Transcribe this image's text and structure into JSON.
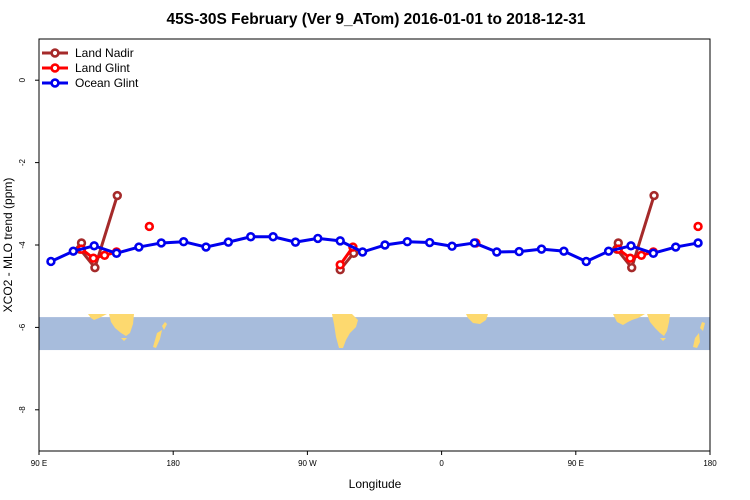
{
  "chart_data": {
    "type": "line",
    "title": "45S-30S February (Ver 9_ATom)   2016-01-01 to 2018-12-31",
    "xlabel": "Longitude",
    "ylabel": "XCO2 - MLO trend (ppm)",
    "xlim": [
      90,
      540
    ],
    "ylim": [
      -9,
      1
    ],
    "x_ticks": [
      {
        "value": 90,
        "label": "90 E"
      },
      {
        "value": 180,
        "label": "180"
      },
      {
        "value": 270,
        "label": "90 W"
      },
      {
        "value": 360,
        "label": "0"
      },
      {
        "value": 450,
        "label": "90 E"
      },
      {
        "value": 540,
        "label": "180"
      }
    ],
    "y_ticks": [
      {
        "value": 0,
        "label": "0"
      },
      {
        "value": -2,
        "label": "-2"
      },
      {
        "value": -4,
        "label": "-4"
      },
      {
        "value": -6,
        "label": "-6"
      },
      {
        "value": -8,
        "label": "-8"
      }
    ],
    "map_band": {
      "y_range": [
        -6.55,
        -5.75
      ],
      "ocean_color": "#a7bcdc",
      "land_color": "#fdd96f"
    },
    "legend_position": "top-left",
    "series": [
      {
        "name": "Land Nadir",
        "color": "#a52a2a",
        "segments": [
          [
            [
              118.5,
              -3.95
            ],
            [
              117.5,
              -4.1
            ],
            [
              127.5,
              -4.55
            ],
            [
              142.5,
              -2.8
            ]
          ],
          [
            [
              292,
              -4.6
            ],
            [
              301,
              -4.2
            ]
          ],
          [
            [
              478.5,
              -3.95
            ],
            [
              477.5,
              -4.1
            ],
            [
              487.5,
              -4.55
            ],
            [
              502.5,
              -2.8
            ]
          ]
        ],
        "points": []
      },
      {
        "name": "Land Glint",
        "color": "#ff0000",
        "segments": [
          [
            [
              118.5,
              -4.1
            ],
            [
              126.5,
              -4.32
            ],
            [
              134,
              -4.25
            ],
            [
              142,
              -4.17
            ]
          ],
          [
            [
              292,
              -4.48
            ],
            [
              300.5,
              -4.05
            ]
          ],
          [
            [
              478.5,
              -4.1
            ],
            [
              486.5,
              -4.32
            ],
            [
              494,
              -4.25
            ],
            [
              502,
              -4.17
            ]
          ]
        ],
        "points": [
          [
            164,
            -3.55
          ],
          [
            383,
            -3.95
          ],
          [
            532,
            -3.55
          ]
        ]
      },
      {
        "name": "Ocean Glint",
        "color": "#0000ee",
        "segments": [
          [
            [
              98,
              -4.4
            ],
            [
              113,
              -4.15
            ],
            [
              127,
              -4.02
            ],
            [
              142,
              -4.2
            ],
            [
              157,
              -4.05
            ],
            [
              172,
              -3.95
            ],
            [
              187,
              -3.92
            ],
            [
              202,
              -4.05
            ],
            [
              217,
              -3.93
            ],
            [
              232,
              -3.8
            ],
            [
              247,
              -3.8
            ],
            [
              262,
              -3.93
            ],
            [
              277,
              -3.84
            ],
            [
              292,
              -3.9
            ],
            [
              307,
              -4.17
            ],
            [
              322,
              -4.0
            ],
            [
              337,
              -3.92
            ],
            [
              352,
              -3.94
            ],
            [
              367,
              -4.03
            ],
            [
              382,
              -3.95
            ],
            [
              397,
              -4.17
            ],
            [
              412,
              -4.16
            ],
            [
              427,
              -4.1
            ],
            [
              442,
              -4.15
            ],
            [
              457,
              -4.4
            ],
            [
              472,
              -4.15
            ],
            [
              487,
              -4.02
            ],
            [
              502,
              -4.2
            ],
            [
              517,
              -4.05
            ],
            [
              532,
              -3.95
            ]
          ]
        ],
        "points": []
      }
    ]
  }
}
